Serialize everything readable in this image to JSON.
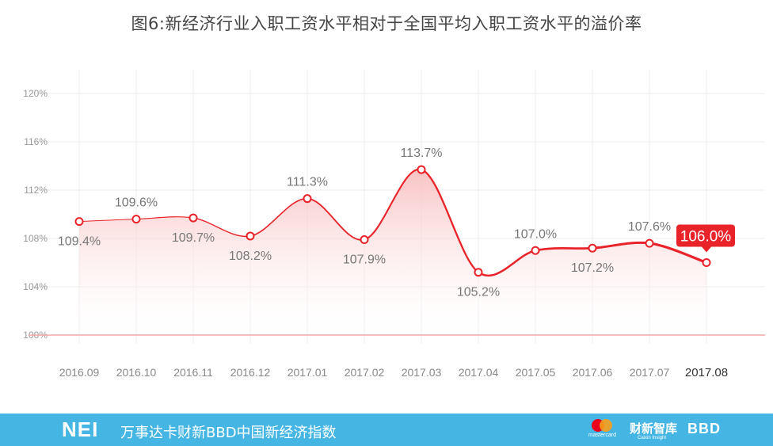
{
  "chart_data": {
    "type": "area",
    "title": "图6:新经济行业入职工资水平相对于全国平均入职工资水平的溢价率",
    "categories": [
      "2016.09",
      "2016.10",
      "2016.11",
      "2016.12",
      "2017.01",
      "2017.02",
      "2017.03",
      "2017.04",
      "2017.05",
      "2017.06",
      "2017.07",
      "2017.08"
    ],
    "series": [
      {
        "values": [
          109.4,
          109.6,
          109.7,
          108.2,
          111.3,
          107.9,
          113.7,
          105.2,
          107.0,
          107.2,
          107.6,
          106.0
        ]
      }
    ],
    "data_labels": [
      "109.4%",
      "109.6%",
      "109.7%",
      "108.2%",
      "111.3%",
      "107.9%",
      "113.7%",
      "105.2%",
      "107.0%",
      "107.2%",
      "107.6%",
      "106.0%"
    ],
    "label_above": [
      false,
      true,
      false,
      false,
      true,
      false,
      true,
      false,
      true,
      false,
      true,
      true
    ],
    "highlight_index": 11,
    "yticks": [
      "120%",
      "116%",
      "112%",
      "108%",
      "104%",
      "100%"
    ],
    "ytick_values": [
      120,
      116,
      112,
      108,
      104,
      100
    ],
    "ylim": [
      100,
      120
    ],
    "baseline": 100,
    "grid": true,
    "colors": {
      "line": "#e8232a",
      "area_top": "#f7b8b9",
      "baseline": "#f4a6a8",
      "grid": "#eeeeee",
      "label": "#777777",
      "highlight_bg": "#e8232a"
    }
  },
  "footer": {
    "logo": "NEI",
    "brand_text": "万事达卡财新BBD中国新经济指数",
    "mastercard_word": "mastercard",
    "caixin_logo": "财新智库",
    "caixin_sub": "Caixin Insight",
    "bbd_logo": "BBD",
    "background": "#45b6e4"
  }
}
